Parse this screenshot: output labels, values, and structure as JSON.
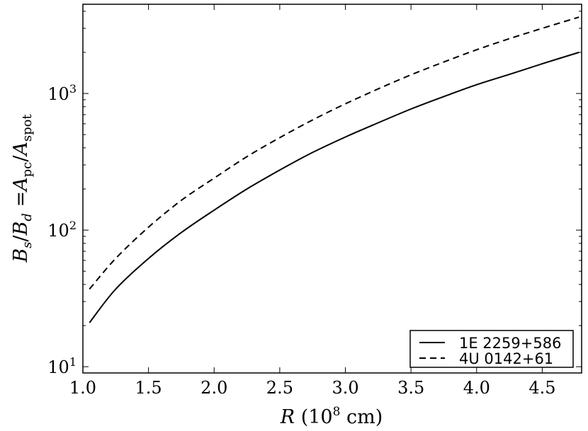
{
  "chart_data": {
    "type": "line",
    "title": "",
    "xlabel": {
      "var": "R",
      "pre": "(10",
      "exp": "8",
      "post": " cm)"
    },
    "ylabel": {
      "b1": "B",
      "s1": "s",
      "slash1": "/",
      "b2": "B",
      "s2": "d",
      "eq": " =",
      "a1": "A",
      "s3": "pc",
      "slash2": "/",
      "a2": "A",
      "s4": "spot"
    },
    "xlim": [
      1.0,
      4.8
    ],
    "ylim": [
      9,
      4500
    ],
    "yscale": "log",
    "xticks": [
      "1.0",
      "1.5",
      "2.0",
      "2.5",
      "3.0",
      "3.5",
      "4.0",
      "4.5"
    ],
    "xtick_values": [
      1.0,
      1.5,
      2.0,
      2.5,
      3.0,
      3.5,
      4.0,
      4.5
    ],
    "yticks": [
      {
        "value": 10,
        "base": "10",
        "exp": "1"
      },
      {
        "value": 100,
        "base": "10",
        "exp": "2"
      },
      {
        "value": 1000,
        "base": "10",
        "exp": "3"
      }
    ],
    "legend_position": "lower-right",
    "series": [
      {
        "name": "1E 2259+586",
        "style": "solid",
        "x": [
          1.05,
          1.25,
          1.5,
          1.75,
          2.0,
          2.25,
          2.5,
          2.75,
          3.0,
          3.25,
          3.5,
          3.75,
          4.0,
          4.25,
          4.5,
          4.78
        ],
        "y": [
          21,
          37,
          62,
          96,
          140,
          200,
          275,
          370,
          480,
          610,
          770,
          950,
          1160,
          1380,
          1650,
          2000
        ]
      },
      {
        "name": "4U 0142+61",
        "style": "dashed",
        "x": [
          1.05,
          1.25,
          1.5,
          1.75,
          2.0,
          2.25,
          2.5,
          2.75,
          3.0,
          3.25,
          3.5,
          3.75,
          4.0,
          4.25,
          4.5,
          4.78
        ],
        "y": [
          37,
          62,
          105,
          165,
          240,
          345,
          475,
          640,
          840,
          1080,
          1370,
          1700,
          2090,
          2520,
          3000,
          3620
        ]
      }
    ]
  }
}
